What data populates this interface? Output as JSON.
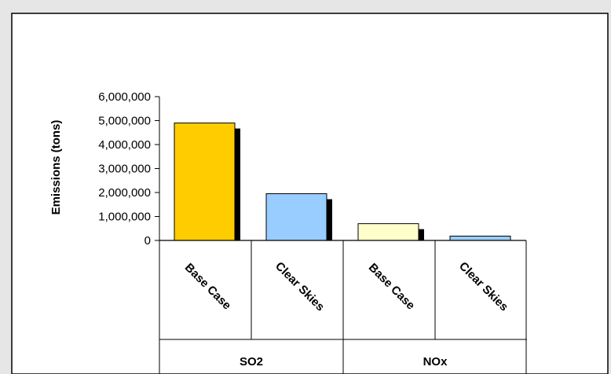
{
  "chart_data": {
    "type": "bar",
    "title": "",
    "ylabel": "Emissions (tons)",
    "ylim": [
      0,
      6000000
    ],
    "yticks": [
      0,
      1000000,
      2000000,
      3000000,
      4000000,
      5000000,
      6000000
    ],
    "ytick_labels": [
      "0",
      "1,000,000",
      "2,000,000",
      "3,000,000",
      "4,000,000",
      "5,000,000",
      "6,000,000"
    ],
    "groups": [
      {
        "label": "SO2",
        "bars": [
          {
            "label": "Base Case",
            "value": 4900000,
            "color": "#FFCC00"
          },
          {
            "label": "Clear Skies",
            "value": 1950000,
            "color": "#99CCFF"
          }
        ]
      },
      {
        "label": "NOx",
        "bars": [
          {
            "label": "Base Case",
            "value": 700000,
            "color": "#FFFFCC"
          },
          {
            "label": "Clear Skies",
            "value": 180000,
            "color": "#99CCFF"
          }
        ]
      }
    ],
    "grid": false,
    "legend": "none",
    "colors": {
      "background": "#ffffff",
      "page_bg": "#E6E6E6",
      "shadow": "#000000"
    }
  }
}
